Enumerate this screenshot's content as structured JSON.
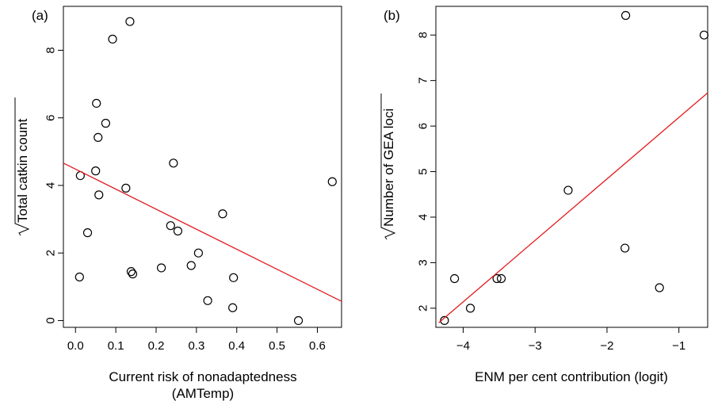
{
  "chart_data": [
    {
      "type": "scatter",
      "panel_label": "(a)",
      "title": "",
      "xlabel_lines": [
        "Current risk of nonadaptedness",
        "(AMTemp)"
      ],
      "ylabel_radicand": "Total catkin count",
      "xlim": [
        -0.03,
        0.66
      ],
      "ylim": [
        -0.2,
        9.3
      ],
      "xticks": [
        0.0,
        0.1,
        0.2,
        0.3,
        0.4,
        0.5,
        0.6
      ],
      "xtick_labels": [
        "0.0",
        "0.1",
        "0.2",
        "0.3",
        "0.4",
        "0.5",
        "0.6"
      ],
      "yticks": [
        0,
        2,
        4,
        6,
        8
      ],
      "ytick_labels": [
        "0",
        "2",
        "4",
        "6",
        "8"
      ],
      "grid": false,
      "points": [
        {
          "x": 0.135,
          "y": 8.85
        },
        {
          "x": 0.092,
          "y": 8.33
        },
        {
          "x": 0.052,
          "y": 6.43
        },
        {
          "x": 0.075,
          "y": 5.84
        },
        {
          "x": 0.056,
          "y": 5.42
        },
        {
          "x": 0.243,
          "y": 4.66
        },
        {
          "x": 0.05,
          "y": 4.43
        },
        {
          "x": 0.012,
          "y": 4.29
        },
        {
          "x": 0.637,
          "y": 4.11
        },
        {
          "x": 0.125,
          "y": 3.92
        },
        {
          "x": 0.058,
          "y": 3.72
        },
        {
          "x": 0.365,
          "y": 3.16
        },
        {
          "x": 0.236,
          "y": 2.81
        },
        {
          "x": 0.254,
          "y": 2.65
        },
        {
          "x": 0.03,
          "y": 2.6
        },
        {
          "x": 0.305,
          "y": 2.0
        },
        {
          "x": 0.287,
          "y": 1.63
        },
        {
          "x": 0.213,
          "y": 1.56
        },
        {
          "x": 0.138,
          "y": 1.45
        },
        {
          "x": 0.142,
          "y": 1.38
        },
        {
          "x": 0.01,
          "y": 1.29
        },
        {
          "x": 0.392,
          "y": 1.27
        },
        {
          "x": 0.328,
          "y": 0.59
        },
        {
          "x": 0.39,
          "y": 0.38
        },
        {
          "x": 0.553,
          "y": 0.0
        }
      ],
      "fit_line": {
        "x": [
          -0.03,
          0.66
        ],
        "y": [
          4.66,
          0.57
        ],
        "color": "#e31a1c"
      }
    },
    {
      "type": "scatter",
      "panel_label": "(b)",
      "title": "",
      "xlabel_lines": [
        "ENM per cent contribution (logit)"
      ],
      "ylabel_radicand": "Number of GEA loci",
      "xlim": [
        -4.38,
        -0.6
      ],
      "ylim": [
        1.58,
        8.63
      ],
      "xticks": [
        -4,
        -3,
        -2,
        -1
      ],
      "xtick_labels": [
        "−4",
        "−3",
        "−2",
        "−1"
      ],
      "yticks": [
        2,
        3,
        4,
        5,
        6,
        7,
        8
      ],
      "ytick_labels": [
        "2",
        "3",
        "4",
        "5",
        "6",
        "7",
        "8"
      ],
      "grid": false,
      "points": [
        {
          "x": -1.74,
          "y": 8.43
        },
        {
          "x": -0.65,
          "y": 8.0
        },
        {
          "x": -2.54,
          "y": 4.59
        },
        {
          "x": -1.75,
          "y": 3.32
        },
        {
          "x": -4.12,
          "y": 2.65
        },
        {
          "x": -3.53,
          "y": 2.65
        },
        {
          "x": -3.47,
          "y": 2.65
        },
        {
          "x": -1.27,
          "y": 2.45
        },
        {
          "x": -3.9,
          "y": 2.0
        },
        {
          "x": -4.26,
          "y": 1.73
        }
      ],
      "fit_line": {
        "x": [
          -4.34,
          -0.6
        ],
        "y": [
          1.68,
          6.73
        ],
        "color": "#e31a1c"
      }
    }
  ]
}
